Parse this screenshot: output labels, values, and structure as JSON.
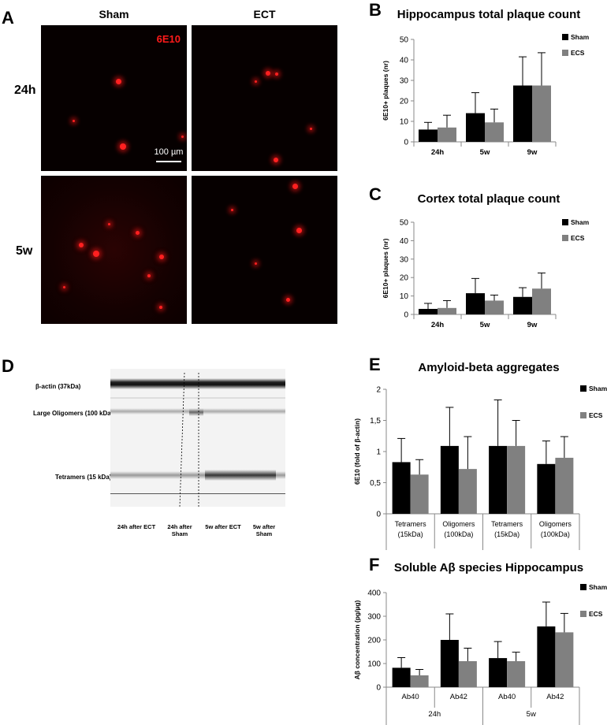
{
  "panel_A": {
    "label": "A",
    "col_sham": "Sham",
    "col_ect": "ECT",
    "row_24h": "24h",
    "row_5w": "5w",
    "stain": "6E10",
    "scalebar": "100 µm"
  },
  "panel_D": {
    "label": "D",
    "bands": [
      "β-actin (37kDa)",
      "Large Oligomers (100 kDa)",
      "Tetramers (15 kDa)"
    ],
    "lanes": [
      "24h after ECT",
      "24h after Sham",
      "5w after ECT",
      "5w after Sham"
    ]
  },
  "chart_data": [
    {
      "id": "B",
      "label": "B",
      "type": "bar",
      "title": "Hippocampus total plaque count",
      "ylabel": "6E10+ plaques (nr)",
      "categories": [
        "24h",
        "5w",
        "9w"
      ],
      "ylim": [
        0,
        50
      ],
      "ticks": [
        "0",
        "10",
        "20",
        "30",
        "40",
        "50"
      ],
      "series": [
        {
          "name": "Sham",
          "color": "#000000",
          "values": [
            6,
            14,
            27.5
          ],
          "errors": [
            3.5,
            10,
            14
          ]
        },
        {
          "name": "ECS",
          "color": "#808080",
          "values": [
            7,
            9.5,
            27.5
          ],
          "errors": [
            6,
            6.5,
            16
          ]
        }
      ]
    },
    {
      "id": "C",
      "label": "C",
      "type": "bar",
      "title": "Cortex total plaque count",
      "ylabel": "6E10+ plaques (nr)",
      "categories": [
        "24h",
        "5w",
        "9w"
      ],
      "ylim": [
        0,
        50
      ],
      "ticks": [
        "0",
        "10",
        "20",
        "30",
        "40",
        "50"
      ],
      "series": [
        {
          "name": "Sham",
          "color": "#000000",
          "values": [
            3,
            11.5,
            9.5
          ],
          "errors": [
            3,
            8,
            5
          ]
        },
        {
          "name": "ECS",
          "color": "#808080",
          "values": [
            3.5,
            7.5,
            14
          ],
          "errors": [
            4,
            3,
            8.5
          ]
        }
      ]
    },
    {
      "id": "E",
      "label": "E",
      "type": "bar",
      "title": "Amyloid-beta aggregates",
      "ylabel": "6E10 (fold of β-actin)",
      "categories": [
        "Tetramers (15kDa)",
        "Oligomers (100kDa)",
        "Tetramers (15kDa)",
        "Oligomers (100kDa)"
      ],
      "groups": [
        "24h",
        "5w"
      ],
      "ylim": [
        0,
        2
      ],
      "ticks": [
        "0",
        "0,5",
        "1",
        "1,5",
        "2"
      ],
      "series": [
        {
          "name": "Sham",
          "color": "#000000",
          "values": [
            0.83,
            1.09,
            1.09,
            0.8
          ],
          "errors": [
            0.38,
            0.62,
            0.74,
            0.37
          ]
        },
        {
          "name": "ECS",
          "color": "#808080",
          "values": [
            0.63,
            0.72,
            1.09,
            0.9
          ],
          "errors": [
            0.24,
            0.52,
            0.41,
            0.34
          ]
        }
      ]
    },
    {
      "id": "F",
      "label": "F",
      "type": "bar",
      "title": "Soluble Aβ species Hippocampus",
      "ylabel": "Aβ concentration (pg/µg)",
      "categories": [
        "Ab40",
        "Ab42",
        "Ab40",
        "Ab42"
      ],
      "groups": [
        "24h",
        "5w"
      ],
      "ylim": [
        0,
        400
      ],
      "ticks": [
        "0",
        "100",
        "200",
        "300",
        "400"
      ],
      "series": [
        {
          "name": "Sham",
          "color": "#000000",
          "values": [
            82,
            200,
            123,
            257
          ],
          "errors": [
            43,
            110,
            70,
            103
          ]
        },
        {
          "name": "ECS",
          "color": "#808080",
          "values": [
            50,
            110,
            110,
            232
          ],
          "errors": [
            25,
            55,
            38,
            80
          ]
        }
      ]
    }
  ]
}
